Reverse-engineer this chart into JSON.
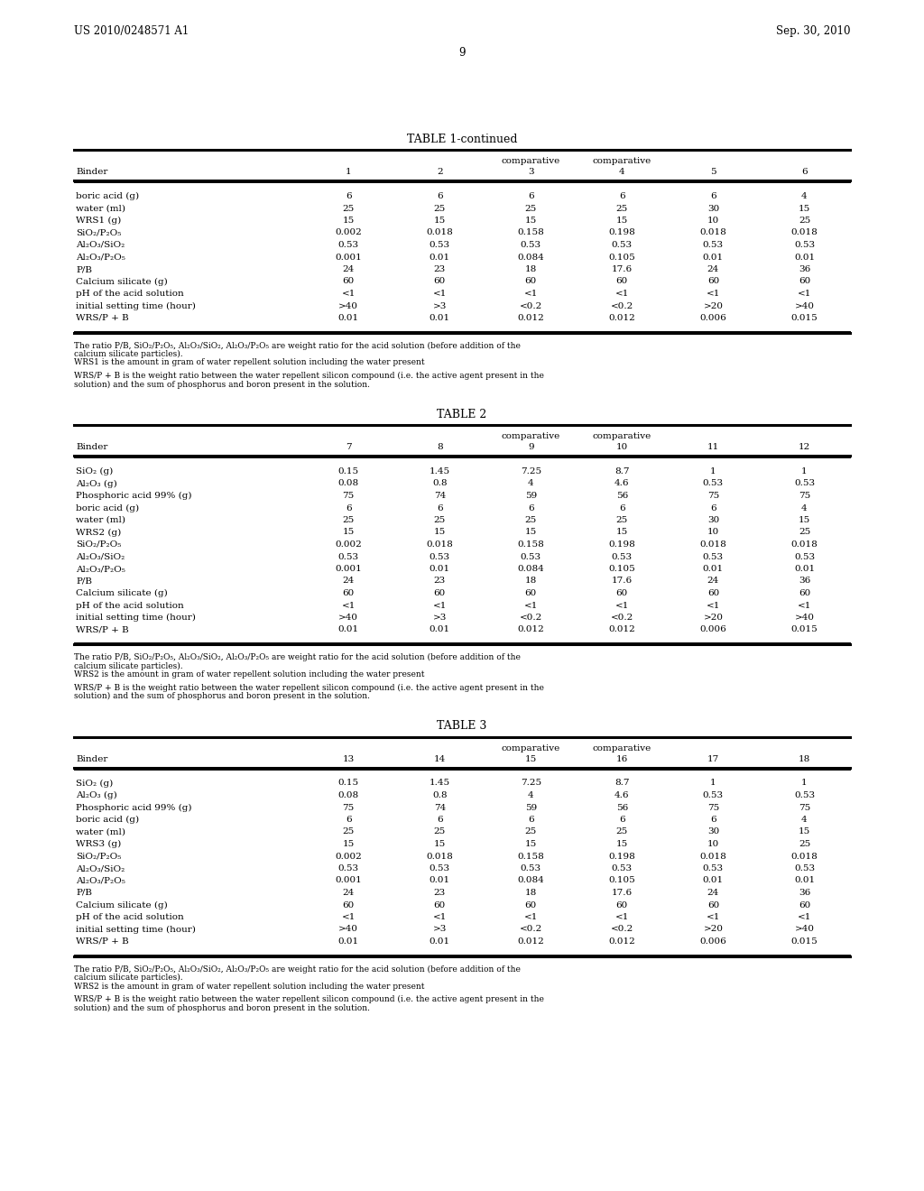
{
  "page_header_left": "US 2010/0248571 A1",
  "page_header_right": "Sep. 30, 2010",
  "page_number": "9",
  "table1_title": "TABLE 1-continued",
  "table1_binder_label": "Binder",
  "table1_col_nums": [
    "1",
    "2",
    "3",
    "4",
    "5",
    "6"
  ],
  "table1_comp_cols": [
    2,
    3
  ],
  "table1_rows": [
    [
      "boric acid (g)",
      "6",
      "6",
      "6",
      "6",
      "6",
      "4"
    ],
    [
      "water (ml)",
      "25",
      "25",
      "25",
      "25",
      "30",
      "15"
    ],
    [
      "WRS1 (g)",
      "15",
      "15",
      "15",
      "15",
      "10",
      "25"
    ],
    [
      "SiO₂/P₂O₅",
      "0.002",
      "0.018",
      "0.158",
      "0.198",
      "0.018",
      "0.018"
    ],
    [
      "Al₂O₃/SiO₂",
      "0.53",
      "0.53",
      "0.53",
      "0.53",
      "0.53",
      "0.53"
    ],
    [
      "Al₂O₃/P₂O₅",
      "0.001",
      "0.01",
      "0.084",
      "0.105",
      "0.01",
      "0.01"
    ],
    [
      "P/B",
      "24",
      "23",
      "18",
      "17.6",
      "24",
      "36"
    ],
    [
      "Calcium silicate (g)",
      "60",
      "60",
      "60",
      "60",
      "60",
      "60"
    ],
    [
      "pH of the acid solution",
      "<1",
      "<1",
      "<1",
      "<1",
      "<1",
      "<1"
    ],
    [
      "initial setting time (hour)",
      ">40",
      ">3",
      "<0.2",
      "<0.2",
      ">20",
      ">40"
    ],
    [
      "WRS/P + B",
      "0.01",
      "0.01",
      "0.012",
      "0.012",
      "0.006",
      "0.015"
    ]
  ],
  "table1_footnotes": [
    [
      "The ratio P/B, SiO₂/P₂O₅, Al₂O₃/SiO₂, Al₂O₃/P₂O₅ are weight ratio for the acid solution (before addition of the",
      false
    ],
    [
      "calcium silicate particles).",
      false
    ],
    [
      "WRS1 is the amount in gram of water repellent solution including the water present",
      false
    ],
    [
      "",
      true
    ],
    [
      "WRS/P + B is the weight ratio between the water repellent silicon compound (i.e. the active agent present in the",
      false
    ],
    [
      "solution) and the sum of phosphorus and boron present in the solution.",
      false
    ]
  ],
  "table2_title": "TABLE 2",
  "table2_binder_label": "Binder",
  "table2_col_nums": [
    "7",
    "8",
    "9",
    "10",
    "11",
    "12"
  ],
  "table2_comp_cols": [
    2,
    3
  ],
  "table2_rows": [
    [
      "SiO₂ (g)",
      "0.15",
      "1.45",
      "7.25",
      "8.7",
      "1",
      "1"
    ],
    [
      "Al₂O₃ (g)",
      "0.08",
      "0.8",
      "4",
      "4.6",
      "0.53",
      "0.53"
    ],
    [
      "Phosphoric acid 99% (g)",
      "75",
      "74",
      "59",
      "56",
      "75",
      "75"
    ],
    [
      "boric acid (g)",
      "6",
      "6",
      "6",
      "6",
      "6",
      "4"
    ],
    [
      "water (ml)",
      "25",
      "25",
      "25",
      "25",
      "30",
      "15"
    ],
    [
      "WRS2 (g)",
      "15",
      "15",
      "15",
      "15",
      "10",
      "25"
    ],
    [
      "SiO₂/P₂O₅",
      "0.002",
      "0.018",
      "0.158",
      "0.198",
      "0.018",
      "0.018"
    ],
    [
      "Al₂O₃/SiO₂",
      "0.53",
      "0.53",
      "0.53",
      "0.53",
      "0.53",
      "0.53"
    ],
    [
      "Al₂O₃/P₂O₅",
      "0.001",
      "0.01",
      "0.084",
      "0.105",
      "0.01",
      "0.01"
    ],
    [
      "P/B",
      "24",
      "23",
      "18",
      "17.6",
      "24",
      "36"
    ],
    [
      "Calcium silicate (g)",
      "60",
      "60",
      "60",
      "60",
      "60",
      "60"
    ],
    [
      "pH of the acid solution",
      "<1",
      "<1",
      "<1",
      "<1",
      "<1",
      "<1"
    ],
    [
      "initial setting time (hour)",
      ">40",
      ">3",
      "<0.2",
      "<0.2",
      ">20",
      ">40"
    ],
    [
      "WRS/P + B",
      "0.01",
      "0.01",
      "0.012",
      "0.012",
      "0.006",
      "0.015"
    ]
  ],
  "table2_footnotes": [
    [
      "The ratio P/B, SiO₂/P₂O₅, Al₂O₃/SiO₂, Al₂O₃/P₂O₅ are weight ratio for the acid solution (before addition of the",
      false
    ],
    [
      "calcium silicate particles).",
      false
    ],
    [
      "WRS2 is the amount in gram of water repellent solution including the water present",
      false
    ],
    [
      "",
      true
    ],
    [
      "WRS/P + B is the weight ratio between the water repellent silicon compound (i.e. the active agent present in the",
      false
    ],
    [
      "solution) and the sum of phosphorus and boron present in the solution.",
      false
    ]
  ],
  "table3_title": "TABLE 3",
  "table3_binder_label": "Binder",
  "table3_col_nums": [
    "13",
    "14",
    "15",
    "16",
    "17",
    "18"
  ],
  "table3_comp_cols": [
    2,
    3
  ],
  "table3_rows": [
    [
      "SiO₂ (g)",
      "0.15",
      "1.45",
      "7.25",
      "8.7",
      "1",
      "1"
    ],
    [
      "Al₂O₃ (g)",
      "0.08",
      "0.8",
      "4",
      "4.6",
      "0.53",
      "0.53"
    ],
    [
      "Phosphoric acid 99% (g)",
      "75",
      "74",
      "59",
      "56",
      "75",
      "75"
    ],
    [
      "boric acid (g)",
      "6",
      "6",
      "6",
      "6",
      "6",
      "4"
    ],
    [
      "water (ml)",
      "25",
      "25",
      "25",
      "25",
      "30",
      "15"
    ],
    [
      "WRS3 (g)",
      "15",
      "15",
      "15",
      "15",
      "10",
      "25"
    ],
    [
      "SiO₂/P₂O₅",
      "0.002",
      "0.018",
      "0.158",
      "0.198",
      "0.018",
      "0.018"
    ],
    [
      "Al₂O₃/SiO₂",
      "0.53",
      "0.53",
      "0.53",
      "0.53",
      "0.53",
      "0.53"
    ],
    [
      "Al₂O₃/P₂O₅",
      "0.001",
      "0.01",
      "0.084",
      "0.105",
      "0.01",
      "0.01"
    ],
    [
      "P/B",
      "24",
      "23",
      "18",
      "17.6",
      "24",
      "36"
    ],
    [
      "Calcium silicate (g)",
      "60",
      "60",
      "60",
      "60",
      "60",
      "60"
    ],
    [
      "pH of the acid solution",
      "<1",
      "<1",
      "<1",
      "<1",
      "<1",
      "<1"
    ],
    [
      "initial setting time (hour)",
      ">40",
      ">3",
      "<0.2",
      "<0.2",
      ">20",
      ">40"
    ],
    [
      "WRS/P + B",
      "0.01",
      "0.01",
      "0.012",
      "0.012",
      "0.006",
      "0.015"
    ]
  ],
  "table3_footnotes": [
    [
      "The ratio P/B, SiO₂/P₂O₅, Al₂O₃/SiO₂, Al₂O₃/P₂O₅ are weight ratio for the acid solution (before addition of the",
      false
    ],
    [
      "calcium silicate particles).",
      false
    ],
    [
      "WRS2 is the amount in gram of water repellent solution including the water present",
      false
    ],
    [
      "",
      true
    ],
    [
      "WRS/P + B is the weight ratio between the water repellent silicon compound (i.e. the active agent present in the",
      false
    ],
    [
      "solution) and the sum of phosphorus and boron present in the solution.",
      false
    ]
  ]
}
